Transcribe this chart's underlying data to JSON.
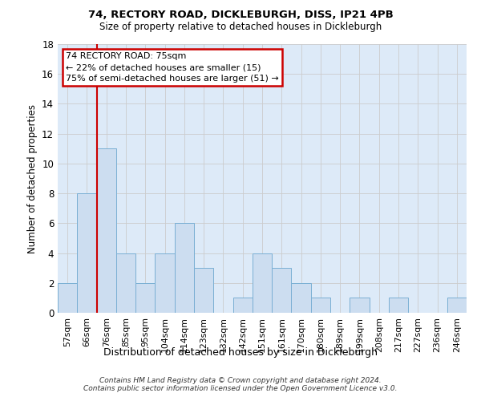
{
  "title1": "74, RECTORY ROAD, DICKLEBURGH, DISS, IP21 4PB",
  "title2": "Size of property relative to detached houses in Dickleburgh",
  "xlabel": "Distribution of detached houses by size in Dickleburgh",
  "ylabel": "Number of detached properties",
  "categories": [
    "57sqm",
    "66sqm",
    "76sqm",
    "85sqm",
    "95sqm",
    "104sqm",
    "114sqm",
    "123sqm",
    "132sqm",
    "142sqm",
    "151sqm",
    "161sqm",
    "170sqm",
    "180sqm",
    "189sqm",
    "199sqm",
    "208sqm",
    "217sqm",
    "227sqm",
    "236sqm",
    "246sqm"
  ],
  "values": [
    2,
    8,
    11,
    4,
    2,
    4,
    6,
    3,
    0,
    1,
    4,
    3,
    2,
    1,
    0,
    1,
    0,
    1,
    0,
    0,
    1
  ],
  "bar_color": "#ccddf0",
  "bar_edge_color": "#7aafd4",
  "vline_color": "#cc0000",
  "vline_x": 1.5,
  "annotation_line1": "74 RECTORY ROAD: 75sqm",
  "annotation_line2": "← 22% of detached houses are smaller (15)",
  "annotation_line3": "75% of semi-detached houses are larger (51) →",
  "annotation_box_color": "#ffffff",
  "annotation_box_edge": "#cc0000",
  "ylim": [
    0,
    18
  ],
  "yticks": [
    0,
    2,
    4,
    6,
    8,
    10,
    12,
    14,
    16,
    18
  ],
  "grid_color": "#cccccc",
  "bg_color": "#ddeaf8",
  "fig_bg_color": "#ffffff",
  "footer_line1": "Contains HM Land Registry data © Crown copyright and database right 2024.",
  "footer_line2": "Contains public sector information licensed under the Open Government Licence v3.0."
}
